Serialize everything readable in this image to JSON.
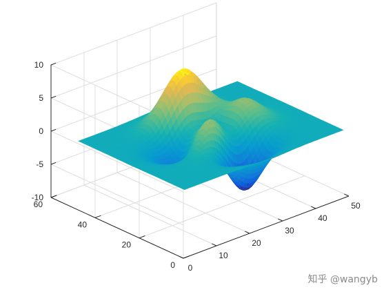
{
  "chart_data": {
    "type": "surface",
    "function": "peaks",
    "colormap": "parula",
    "grid_size": [
      49,
      49
    ],
    "x": {
      "ticks": [
        0,
        10,
        20,
        30,
        40,
        50
      ],
      "range": [
        0,
        50
      ]
    },
    "y": {
      "ticks": [
        0,
        20,
        40,
        60
      ],
      "range": [
        0,
        60
      ]
    },
    "z": {
      "ticks": [
        -10,
        -5,
        0,
        5,
        10
      ],
      "range": [
        -10,
        10
      ]
    },
    "extrema": {
      "max_z": 8.1,
      "min_z": -6.55
    },
    "grid": true,
    "view": {
      "azimuth": -37.5,
      "elevation": 30
    }
  },
  "watermark": {
    "text": "知乎 @wangyb"
  }
}
